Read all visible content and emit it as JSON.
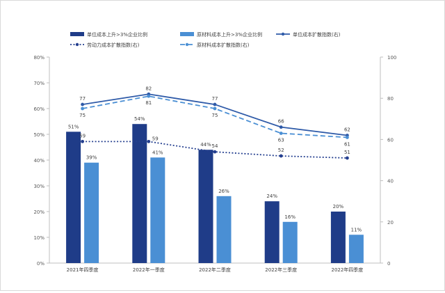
{
  "chart_data": {
    "type": "bar",
    "categories": [
      "2021年四季度",
      "2022年一季度",
      "2022年二季度",
      "2022年三季度",
      "2022年四季度"
    ],
    "bar_series": [
      {
        "name": "单位成本上升>3%企业比例",
        "values": [
          51,
          54,
          44,
          24,
          20
        ],
        "labels": [
          "51%",
          "54%",
          "44%",
          "24%",
          "20%"
        ],
        "color": "#1f3c88"
      },
      {
        "name": "原材料成本上升>3%企业比例",
        "values": [
          39,
          41,
          26,
          16,
          11
        ],
        "labels": [
          "39%",
          "41%",
          "26%",
          "16%",
          "11%"
        ],
        "color": "#4a8fd4"
      }
    ],
    "line_series": [
      {
        "name": "单位成本扩散指数(右)",
        "values": [
          77,
          82,
          77,
          66,
          62
        ],
        "style": "solid",
        "color": "#2e5aa8",
        "label_pos": [
          "above",
          "above",
          "above",
          "above",
          "above"
        ]
      },
      {
        "name": "劳动力成本扩散指数(右)",
        "values": [
          59,
          59,
          54,
          52,
          51
        ],
        "style": "dotted",
        "color": "#243f8f",
        "label_pos": [
          "above",
          "right",
          "above",
          "above",
          "above"
        ]
      },
      {
        "name": "原材料成本扩散指数(右)",
        "values": [
          75,
          81,
          75,
          63,
          61
        ],
        "style": "dashed",
        "color": "#4a8fd4",
        "label_pos": [
          "below",
          "below",
          "below",
          "below",
          "below"
        ]
      }
    ],
    "left_axis": {
      "min": 0,
      "max": 80,
      "ticks": [
        "0%",
        "10%",
        "20%",
        "30%",
        "40%",
        "50%",
        "60%",
        "70%",
        "80%"
      ]
    },
    "right_axis": {
      "min": 0,
      "max": 100,
      "ticks": [
        "0",
        "20",
        "40",
        "60",
        "80",
        "100"
      ]
    },
    "legend_position": "top",
    "grid": false
  }
}
